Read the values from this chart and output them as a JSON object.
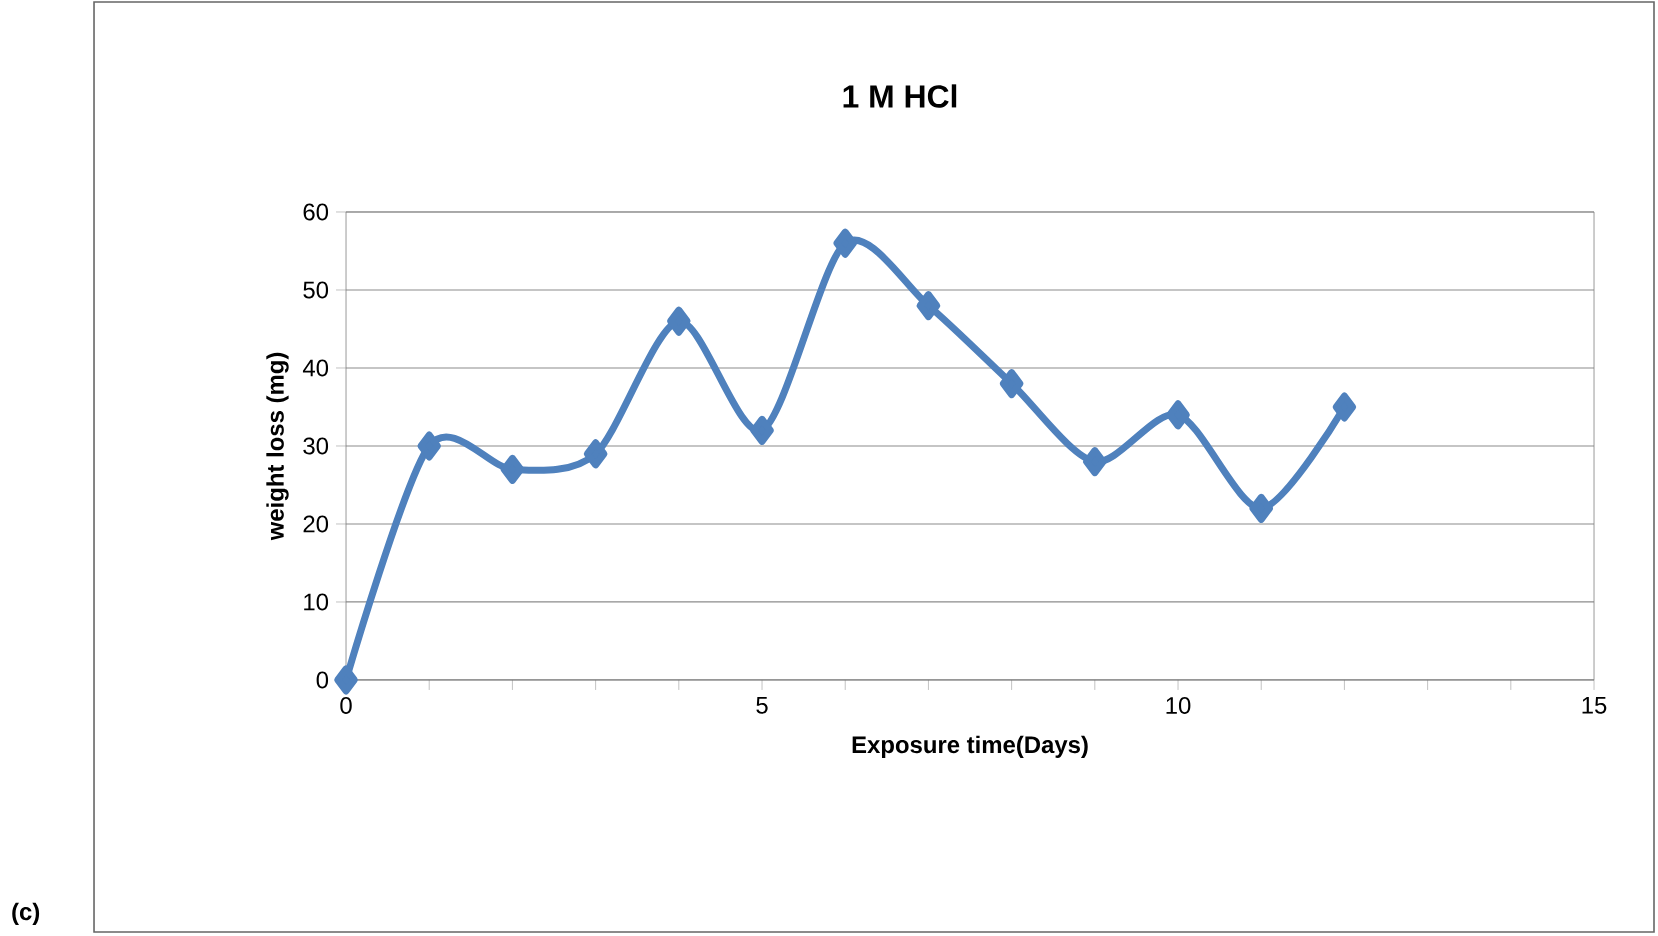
{
  "chart_data": {
    "type": "line",
    "title": "1 M HCl",
    "xlabel": "Exposure time(Days)",
    "ylabel": "weight loss (mg)",
    "annotations": [
      "(c)"
    ],
    "x": [
      0,
      1,
      2,
      3,
      4,
      5,
      6,
      7,
      8,
      9,
      10,
      11,
      12
    ],
    "series": [
      {
        "color": "#4f81bd",
        "values": [
          0,
          30,
          27,
          29,
          46,
          32,
          56,
          48,
          38,
          28,
          34,
          22,
          35
        ]
      }
    ],
    "xlim": [
      0,
      15
    ],
    "ylim": [
      0,
      60
    ],
    "xticks": [
      0,
      {
        "value": 1,
        "label": null
      },
      {
        "value": 2,
        "label": null
      },
      {
        "value": 3,
        "label": null
      },
      {
        "value": 4,
        "label": null
      },
      5,
      {
        "value": 6,
        "label": null
      },
      {
        "value": 7,
        "label": null
      },
      {
        "value": 8,
        "label": null
      },
      {
        "value": 9,
        "label": null
      },
      10,
      {
        "value": 11,
        "label": null
      },
      {
        "value": 12,
        "label": null
      },
      {
        "value": 13,
        "label": null
      },
      {
        "value": 14,
        "label": null
      },
      15
    ],
    "yticks": [
      0,
      10,
      20,
      30,
      40,
      50,
      60
    ],
    "grid": "y",
    "marker": "diamond",
    "line_style": "solid"
  }
}
